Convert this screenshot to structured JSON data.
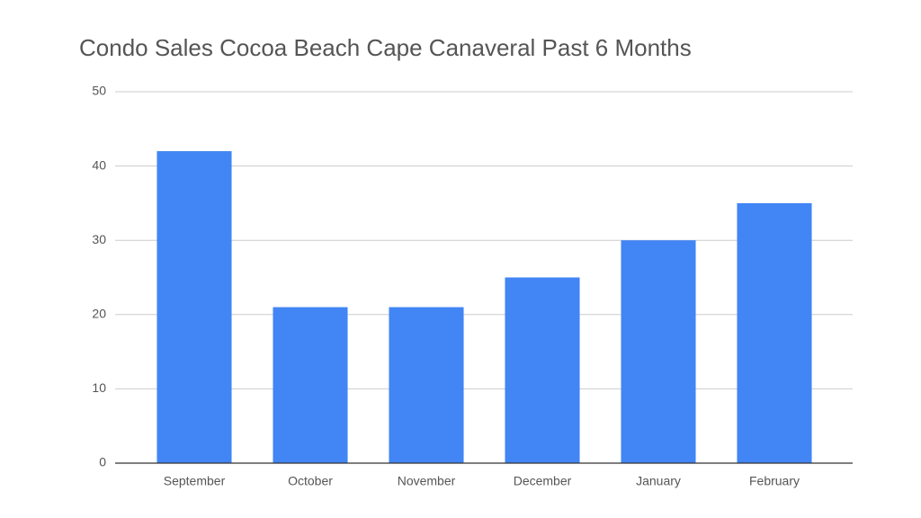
{
  "chart_data": {
    "type": "bar",
    "title": "Condo Sales Cocoa Beach Cape Canaveral Past 6 Months",
    "categories": [
      "September",
      "October",
      "November",
      "December",
      "January",
      "February"
    ],
    "values": [
      42,
      21,
      21,
      25,
      30,
      35
    ],
    "color": "#4285f4",
    "ylim": [
      0,
      50
    ],
    "yticks": [
      0,
      10,
      20,
      30,
      40,
      50
    ],
    "grid": true
  }
}
